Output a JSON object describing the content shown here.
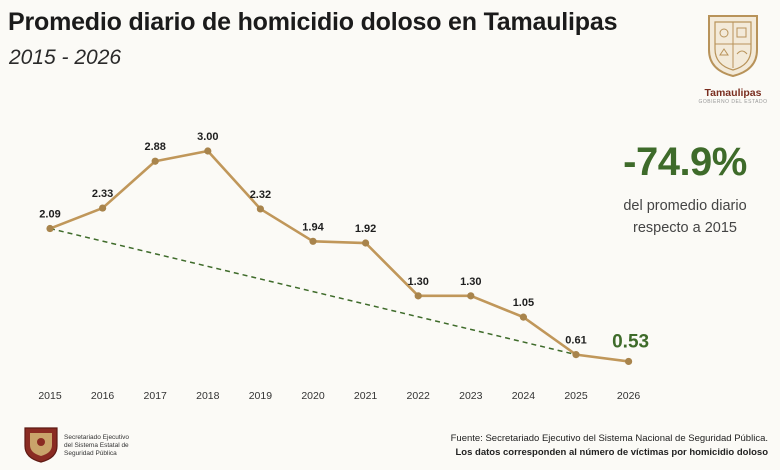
{
  "title": "Promedio diario de homicidio doloso en Tamaulipas",
  "subtitle": "2015 - 2026",
  "logo": {
    "name": "Tamaulipas",
    "tagline": "GOBIERNO DEL ESTADO",
    "icon": "state-shield-icon"
  },
  "highlight": {
    "change": "-74.9%",
    "note_line1": "del promedio diario",
    "note_line2": "respecto a 2015",
    "color": "#3e6b2a"
  },
  "chart_data": {
    "type": "line",
    "categories": [
      "2015",
      "2016",
      "2017",
      "2018",
      "2019",
      "2020",
      "2021",
      "2022",
      "2023",
      "2024",
      "2025",
      "2026"
    ],
    "values": [
      2.09,
      2.33,
      2.88,
      3.0,
      2.32,
      1.94,
      1.92,
      1.3,
      1.3,
      1.05,
      0.61,
      0.53
    ],
    "labels": [
      "2.09",
      "2.33",
      "2.88",
      "3.00",
      "2.32",
      "1.94",
      "1.92",
      "1.30",
      "1.30",
      "1.05",
      "0.61",
      "0.53"
    ],
    "trend_line": {
      "from": 2.09,
      "to": 0.61,
      "style": "dashed",
      "color": "#3e6b2a"
    },
    "line_color": "#c0975a",
    "highlight_last_color": "#3e6b2a",
    "grid": false,
    "legend": "none"
  },
  "footer": {
    "org_line1": "Secretariado Ejecutivo",
    "org_line2": "del Sistema Estatal de",
    "org_line3": "Seguridad Pública",
    "source_line1": "Fuente: Secretariado Ejecutivo del Sistema Nacional de Seguridad Pública.",
    "source_line2": "Los datos corresponden al número de víctimas por homicidio doloso"
  }
}
